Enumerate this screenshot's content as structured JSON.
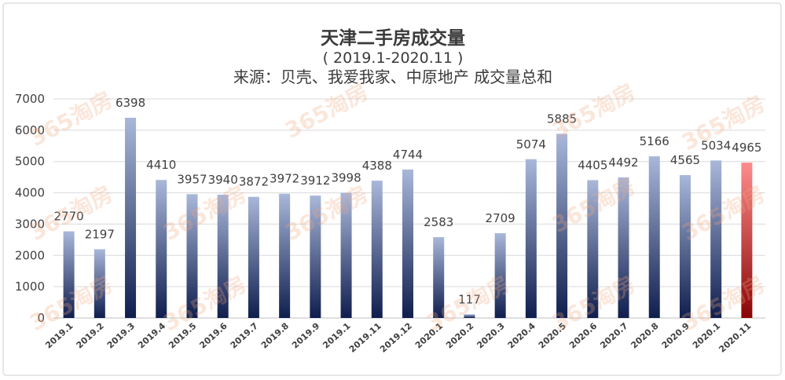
{
  "chart_data": {
    "type": "bar",
    "title": "天津二手房成交量",
    "subtitle": "( 2019.1-2020.11 )",
    "source": "来源：贝壳、我爱我家、中原地产 成交量总和",
    "categories": [
      "2019.1",
      "2019.2",
      "2019.3",
      "2019.4",
      "2019.5",
      "2019.6",
      "2019.7",
      "2019.8",
      "2019.9",
      "2019.1",
      "2019.11",
      "2019.12",
      "2020.1",
      "2020.2",
      "2020.3",
      "2020.4",
      "2020.5",
      "2020.6",
      "2020.7",
      "2020.8",
      "2020.9",
      "2020.1",
      "2020.11"
    ],
    "values": [
      2770,
      2197,
      6398,
      4410,
      3957,
      3940,
      3872,
      3972,
      3912,
      3998,
      4388,
      4744,
      2583,
      117,
      2709,
      5074,
      5885,
      4405,
      4492,
      5166,
      4565,
      5034,
      4965
    ],
    "ylim": [
      0,
      7000
    ],
    "yticks": [
      0,
      1000,
      2000,
      3000,
      4000,
      5000,
      6000,
      7000
    ],
    "grid": true,
    "legend": "none",
    "colors": {
      "bar_top": "#a9b7da",
      "bar_bottom": "#0f1e4d",
      "last_bar_top": "#ff8c8c",
      "last_bar_bottom": "#8a0505",
      "grid": "#d9d9d9",
      "text": "#404040"
    }
  },
  "watermark": "365淘房"
}
